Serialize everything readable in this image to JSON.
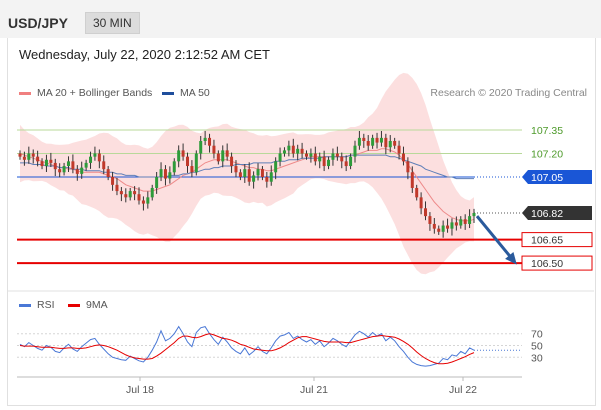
{
  "header": {
    "symbol": "USD/JPY",
    "timeframe": "30 MIN"
  },
  "datetime": "Wednesday, July 22, 2020 2:12:52 AM CET",
  "legend": {
    "ma20": {
      "label": "MA 20 + Bollinger Bands",
      "color": "#f08080"
    },
    "ma50": {
      "label": "MA 50",
      "color": "#1f4e9c"
    }
  },
  "credit": "Research © 2020 Trading Central",
  "chart_data": [
    {
      "type": "candlestick",
      "ylim": [
        106.36,
        107.51
      ],
      "levels": [
        {
          "value": 107.35,
          "label": "107.35",
          "style": "light-green",
          "color": "#4d9a2a"
        },
        {
          "value": 107.2,
          "label": "107.20",
          "style": "light-green",
          "color": "#4d9a2a"
        },
        {
          "value": 107.05,
          "label": "107.05",
          "style": "blue",
          "color": "#1a56d6"
        },
        {
          "value": 106.82,
          "label": "106.82",
          "style": "current",
          "color": "#333333"
        },
        {
          "value": 106.65,
          "label": "106.65",
          "style": "red",
          "color": "#e60000"
        },
        {
          "value": 106.5,
          "label": "106.50",
          "style": "red",
          "color": "#e60000"
        }
      ],
      "x_ticks": [
        "Jul 18",
        "Jul 21",
        "Jul 22"
      ],
      "closes": [
        107.18,
        107.16,
        107.2,
        107.18,
        107.15,
        107.12,
        107.16,
        107.14,
        107.1,
        107.08,
        107.12,
        107.15,
        107.1,
        107.07,
        107.11,
        107.14,
        107.18,
        107.2,
        107.15,
        107.1,
        107.05,
        107.0,
        106.96,
        106.94,
        106.92,
        106.96,
        106.94,
        106.9,
        106.88,
        106.92,
        106.98,
        107.05,
        107.1,
        107.04,
        107.08,
        107.15,
        107.22,
        107.18,
        107.12,
        107.08,
        107.2,
        107.28,
        107.3,
        107.25,
        107.2,
        107.15,
        107.22,
        107.18,
        107.12,
        107.08,
        107.05,
        107.1,
        107.02,
        107.06,
        107.1,
        107.05,
        107.02,
        107.08,
        107.15,
        107.2,
        107.22,
        107.25,
        107.2,
        107.23,
        107.2,
        107.18,
        107.2,
        107.15,
        107.18,
        107.12,
        107.16,
        107.2,
        107.18,
        107.15,
        107.12,
        107.18,
        107.25,
        107.3,
        107.28,
        107.25,
        107.3,
        107.27,
        107.3,
        107.24,
        107.28,
        107.25,
        107.2,
        107.15,
        107.08,
        106.98,
        106.92,
        106.85,
        106.8,
        106.75,
        106.72,
        106.7,
        106.74,
        106.72,
        106.76,
        106.74,
        106.78,
        106.75,
        106.8,
        106.82
      ],
      "ma20": [
        107.2,
        107.19,
        107.18,
        107.17,
        107.16,
        107.15,
        107.14,
        107.13,
        107.12,
        107.11,
        107.11,
        107.1,
        107.1,
        107.09,
        107.08,
        107.08,
        107.08,
        107.08,
        107.08,
        107.07,
        107.06,
        107.05,
        107.04,
        107.02,
        107.0,
        106.99,
        106.98,
        106.97,
        106.96,
        106.96,
        106.96,
        106.97,
        106.98,
        106.99,
        107.0,
        107.02,
        107.04,
        107.06,
        107.07,
        107.08,
        107.1,
        107.12,
        107.14,
        107.15,
        107.16,
        107.16,
        107.16,
        107.16,
        107.15,
        107.14,
        107.13,
        107.12,
        107.11,
        107.11,
        107.1,
        107.1,
        107.09,
        107.09,
        107.1,
        107.11,
        107.12,
        107.13,
        107.14,
        107.15,
        107.16,
        107.17,
        107.18,
        107.18,
        107.18,
        107.18,
        107.18,
        107.18,
        107.18,
        107.18,
        107.18,
        107.19,
        107.19,
        107.2,
        107.21,
        107.22,
        107.22,
        107.22,
        107.23,
        107.23,
        107.22,
        107.21,
        107.19,
        107.16,
        107.13,
        107.09,
        107.05,
        107.01,
        106.97,
        106.93,
        106.89,
        106.86,
        106.83,
        106.81,
        106.79,
        106.78,
        106.77,
        106.77,
        106.77,
        106.78
      ],
      "ma50": [
        107.14,
        107.14,
        107.14,
        107.13,
        107.13,
        107.13,
        107.12,
        107.12,
        107.12,
        107.11,
        107.11,
        107.11,
        107.1,
        107.1,
        107.1,
        107.09,
        107.09,
        107.09,
        107.09,
        107.08,
        107.08,
        107.08,
        107.07,
        107.07,
        107.06,
        107.06,
        107.06,
        107.05,
        107.05,
        107.05,
        107.05,
        107.05,
        107.05,
        107.05,
        107.06,
        107.06,
        107.06,
        107.07,
        107.07,
        107.08,
        107.08,
        107.09,
        107.1,
        107.1,
        107.11,
        107.11,
        107.12,
        107.12,
        107.12,
        107.13,
        107.13,
        107.13,
        107.13,
        107.14,
        107.14,
        107.14,
        107.14,
        107.14,
        107.15,
        107.15,
        107.15,
        107.16,
        107.16,
        107.16,
        107.17,
        107.17,
        107.17,
        107.17,
        107.17,
        107.18,
        107.18,
        107.18,
        107.18,
        107.18,
        107.18,
        107.19,
        107.19,
        107.19,
        107.19,
        107.19,
        107.19,
        107.19,
        107.19,
        107.19,
        107.18,
        107.18,
        107.17,
        107.16,
        107.15,
        107.14,
        107.13,
        107.12,
        107.1,
        107.09,
        107.08,
        107.07,
        107.06,
        107.05,
        107.05,
        107.04,
        107.04,
        107.04,
        107.04,
        107.04
      ]
    },
    {
      "type": "line",
      "ylim": [
        0,
        100
      ],
      "y_ticks": [
        30,
        50,
        70
      ],
      "series": [
        {
          "name": "RSI",
          "color": "#4a78d6"
        },
        {
          "name": "9MA",
          "color": "#e60000"
        }
      ],
      "rsi": [
        52,
        48,
        55,
        50,
        45,
        42,
        50,
        47,
        40,
        38,
        46,
        52,
        44,
        40,
        48,
        54,
        60,
        62,
        52,
        44,
        36,
        30,
        28,
        26,
        25,
        32,
        28,
        24,
        22,
        30,
        42,
        56,
        75,
        58,
        62,
        70,
        82,
        70,
        56,
        48,
        72,
        80,
        82,
        70,
        60,
        52,
        64,
        56,
        46,
        40,
        36,
        46,
        34,
        40,
        48,
        40,
        36,
        46,
        58,
        66,
        68,
        72,
        62,
        66,
        60,
        56,
        60,
        52,
        58,
        48,
        54,
        62,
        58,
        52,
        48,
        58,
        68,
        74,
        70,
        64,
        72,
        66,
        70,
        58,
        64,
        58,
        48,
        40,
        30,
        22,
        18,
        16,
        15,
        16,
        18,
        20,
        28,
        26,
        34,
        32,
        40,
        36,
        46,
        42
      ],
      "ma9": [
        50,
        49,
        49,
        49,
        48,
        47,
        47,
        47,
        46,
        45,
        45,
        46,
        46,
        45,
        45,
        46,
        48,
        50,
        51,
        50,
        48,
        45,
        42,
        38,
        34,
        31,
        29,
        28,
        27,
        27,
        28,
        32,
        37,
        43,
        49,
        55,
        62,
        66,
        66,
        64,
        63,
        65,
        68,
        70,
        68,
        65,
        62,
        61,
        59,
        56,
        52,
        50,
        47,
        44,
        43,
        42,
        41,
        41,
        43,
        46,
        50,
        55,
        59,
        63,
        65,
        65,
        63,
        61,
        59,
        57,
        56,
        56,
        56,
        56,
        55,
        55,
        57,
        59,
        61,
        63,
        65,
        66,
        67,
        66,
        65,
        64,
        61,
        57,
        52,
        46,
        39,
        33,
        28,
        24,
        21,
        19,
        19,
        20,
        22,
        25,
        28,
        31,
        35,
        38
      ]
    }
  ],
  "rsi_legend": {
    "rsi": {
      "label": "RSI",
      "color": "#4a78d6"
    },
    "ma9": {
      "label": "9MA",
      "color": "#e60000"
    }
  }
}
